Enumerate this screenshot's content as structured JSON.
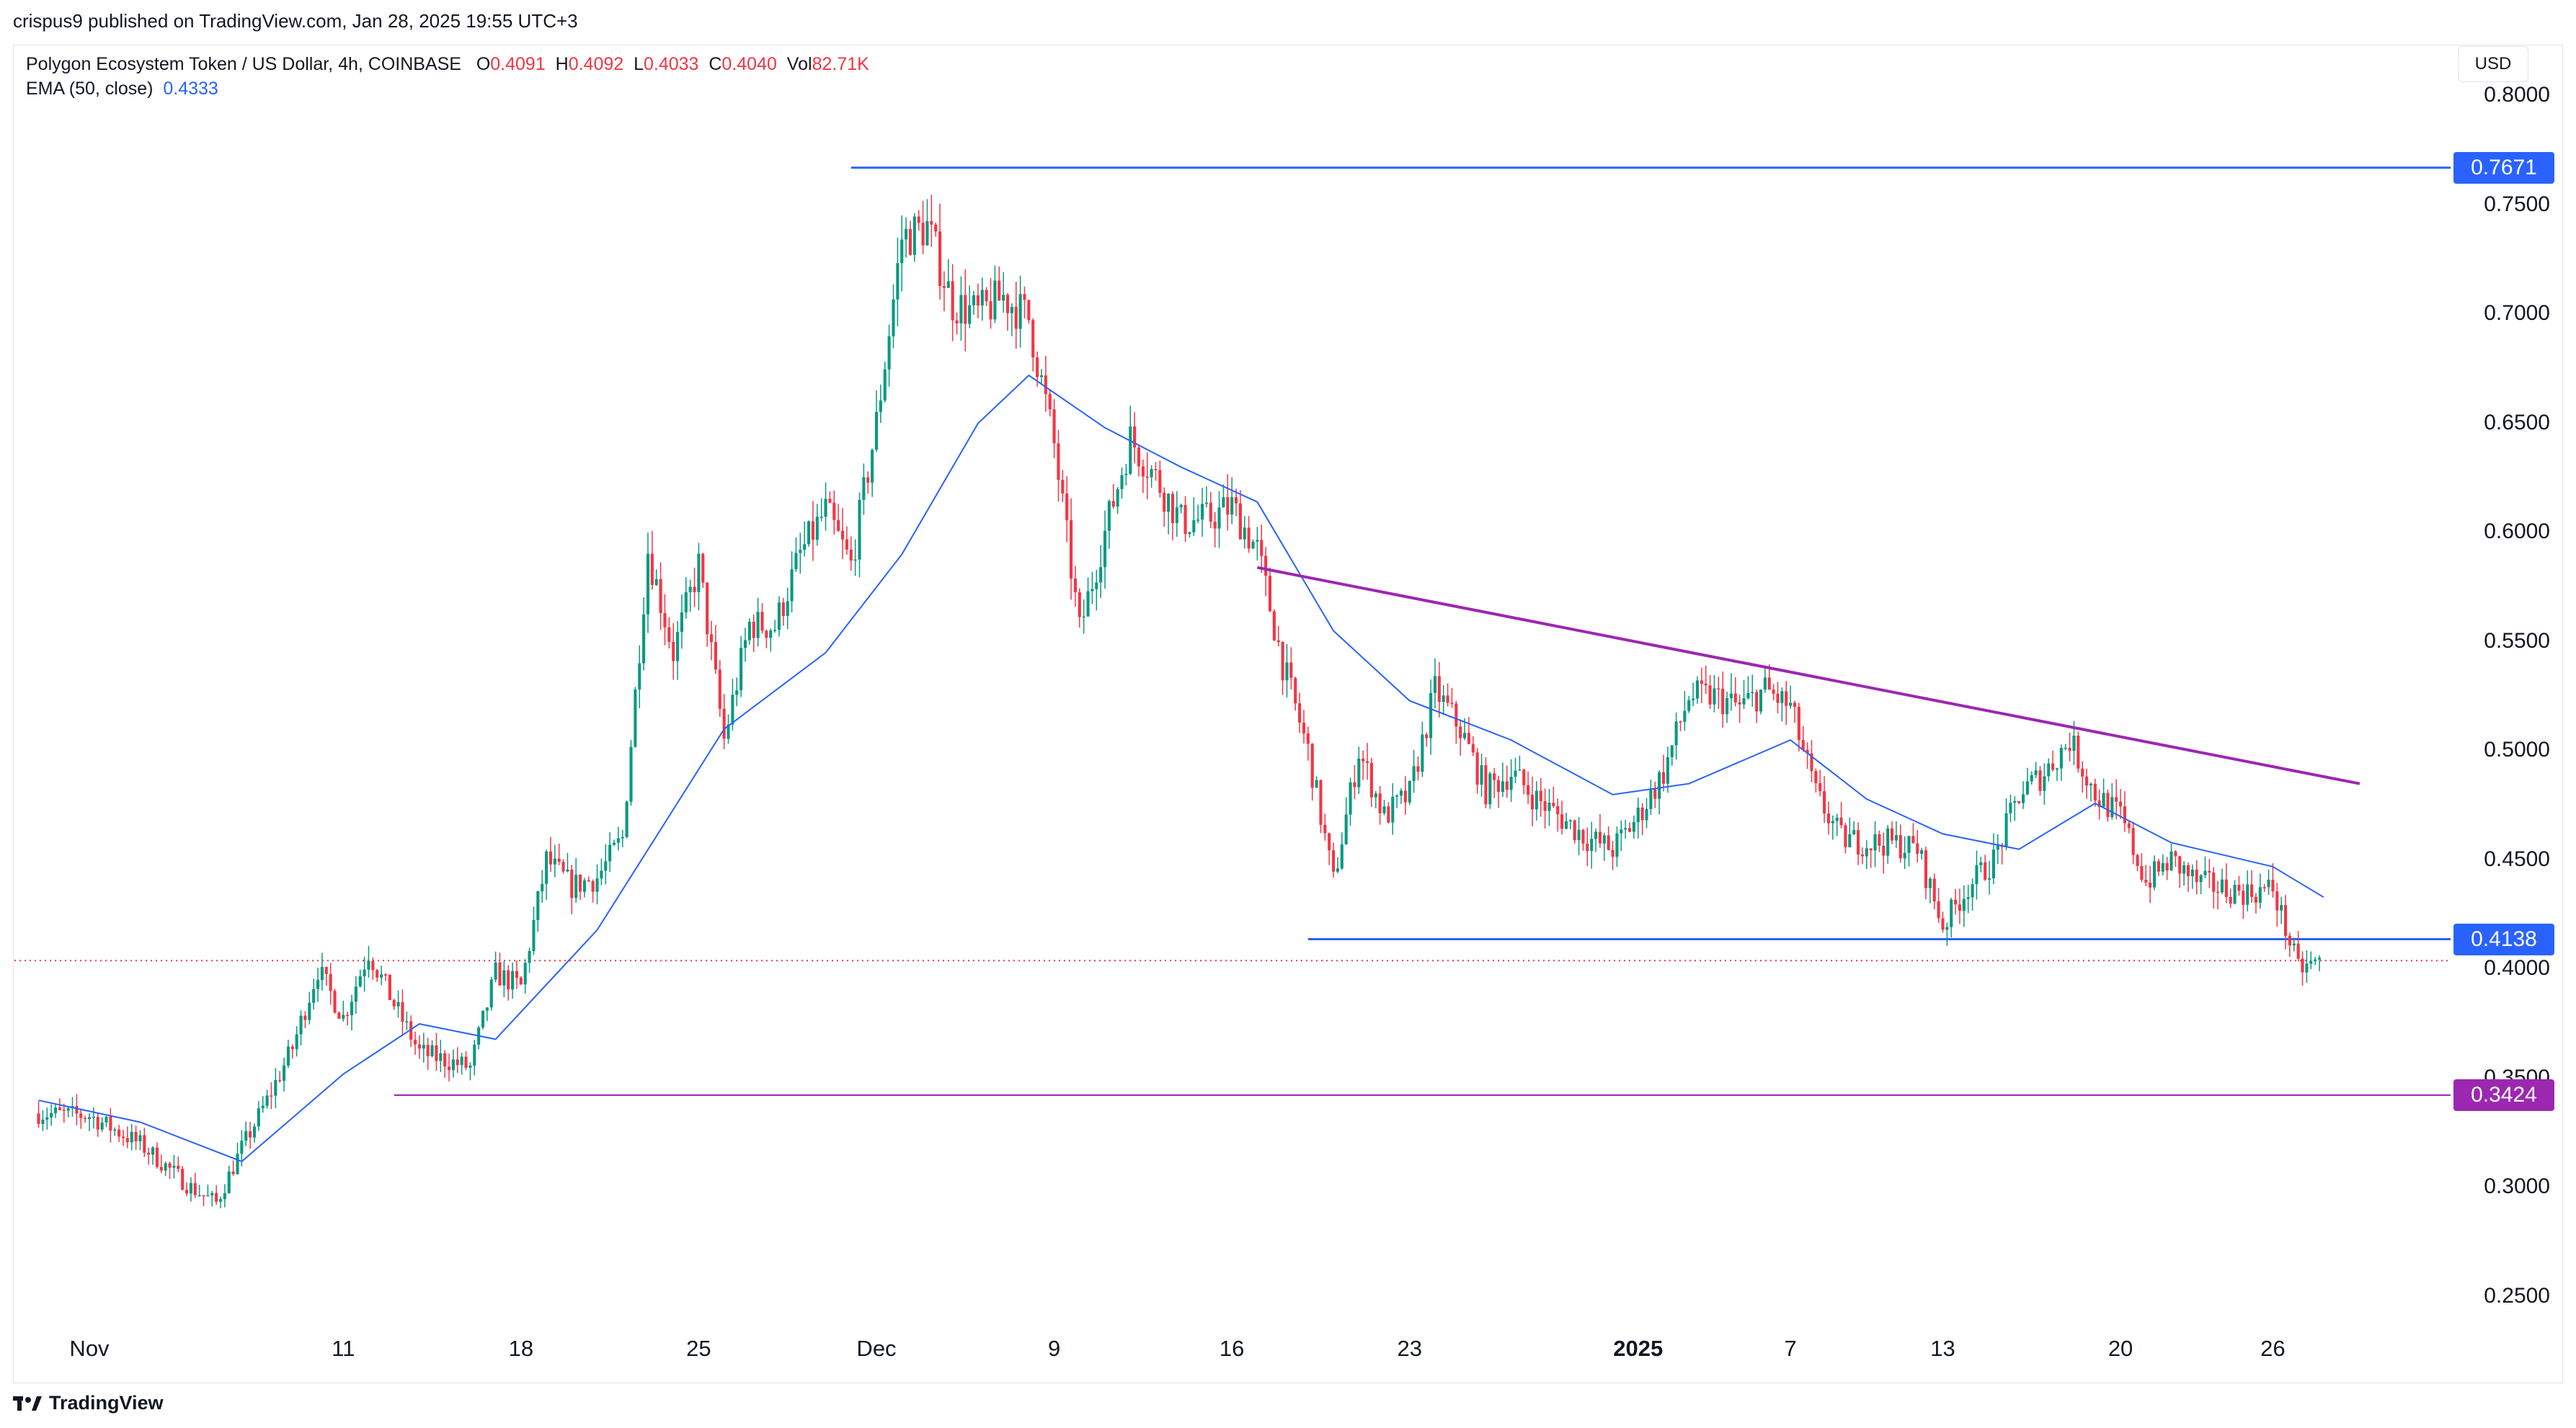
{
  "header": {
    "published": "crispus9 published on TradingView.com, Jan 28, 2025 19:55 UTC+3"
  },
  "legend": {
    "symbol": "Polygon Ecosystem Token / US Dollar, 4h, COINBASE",
    "o_label": "O",
    "o": "0.4091",
    "h_label": "H",
    "h": "0.4092",
    "l_label": "L",
    "l": "0.4033",
    "c_label": "C",
    "c": "0.4040",
    "vol_label": "Vol",
    "vol": "82.71K",
    "ema_label": "EMA (50, close)",
    "ema_value": "0.4333"
  },
  "currency": "USD",
  "branding": "TradingView",
  "colors": {
    "up": "#089981",
    "down": "#f23645",
    "ema": "#2962ff",
    "level": "#2962ff",
    "trend": "#9c27b0",
    "last_price": "#f23645"
  },
  "chart_data": {
    "type": "candlestick",
    "interval": "4h",
    "y_ticks": [
      "0.8000",
      "0.7500",
      "0.7000",
      "0.6500",
      "0.6000",
      "0.5500",
      "0.5000",
      "0.4500",
      "0.4000",
      "0.3500",
      "0.3000",
      "0.2500"
    ],
    "x_ticks": [
      "Nov",
      "11",
      "18",
      "25",
      "Dec",
      "9",
      "16",
      "23",
      "2025",
      "7",
      "13",
      "20",
      "26"
    ],
    "levels": [
      {
        "value": 0.7671,
        "label": "0.7671",
        "color": "#2962ff"
      },
      {
        "value": 0.4138,
        "label": "0.4138",
        "color": "#2962ff"
      },
      {
        "value": 0.3424,
        "label": "0.3424",
        "color": "#9c27b0"
      }
    ],
    "trendline": {
      "from": {
        "date": "2024-12-17",
        "value": 0.584
      },
      "to": {
        "date": "2025-01-28",
        "value": 0.486
      },
      "color": "#9c27b0"
    },
    "last_price": 0.404,
    "price_path": [
      [
        "2024-10-30",
        0.334
      ],
      [
        "2024-11-01",
        0.333
      ],
      [
        "2024-11-03",
        0.32
      ],
      [
        "2024-11-05",
        0.3
      ],
      [
        "2024-11-06",
        0.293
      ],
      [
        "2024-11-07",
        0.318
      ],
      [
        "2024-11-08",
        0.34
      ],
      [
        "2024-11-09",
        0.364
      ],
      [
        "2024-11-10",
        0.4
      ],
      [
        "2024-11-11",
        0.378
      ],
      [
        "2024-11-12",
        0.408
      ],
      [
        "2024-11-13",
        0.384
      ],
      [
        "2024-11-14",
        0.362
      ],
      [
        "2024-11-16",
        0.355
      ],
      [
        "2024-11-17",
        0.398
      ],
      [
        "2024-11-18",
        0.392
      ],
      [
        "2024-11-19",
        0.45
      ],
      [
        "2024-11-20",
        0.438
      ],
      [
        "2024-11-21",
        0.442
      ],
      [
        "2024-11-22",
        0.46
      ],
      [
        "2024-11-23",
        0.592
      ],
      [
        "2024-11-24",
        0.545
      ],
      [
        "2024-11-25",
        0.585
      ],
      [
        "2024-11-26",
        0.505
      ],
      [
        "2024-11-27",
        0.558
      ],
      [
        "2024-11-28",
        0.557
      ],
      [
        "2024-11-29",
        0.59
      ],
      [
        "2024-11-30",
        0.61
      ],
      [
        "2024-12-01",
        0.585
      ],
      [
        "2024-12-02",
        0.65
      ],
      [
        "2024-12-03",
        0.735
      ],
      [
        "2024-12-04",
        0.74
      ],
      [
        "2024-12-05",
        0.705
      ],
      [
        "2024-12-06",
        0.7
      ],
      [
        "2024-12-07",
        0.708
      ],
      [
        "2024-12-08",
        0.698
      ],
      [
        "2024-12-09",
        0.64
      ],
      [
        "2024-12-10",
        0.555
      ],
      [
        "2024-12-11",
        0.6
      ],
      [
        "2024-12-12",
        0.643
      ],
      [
        "2024-12-13",
        0.625
      ],
      [
        "2024-12-14",
        0.605
      ],
      [
        "2024-12-15",
        0.606
      ],
      [
        "2024-12-16",
        0.612
      ],
      [
        "2024-12-17",
        0.592
      ],
      [
        "2024-12-18",
        0.54
      ],
      [
        "2024-12-19",
        0.5
      ],
      [
        "2024-12-20",
        0.44
      ],
      [
        "2024-12-21",
        0.5
      ],
      [
        "2024-12-22",
        0.47
      ],
      [
        "2024-12-23",
        0.48
      ],
      [
        "2024-12-24",
        0.528
      ],
      [
        "2024-12-25",
        0.51
      ],
      [
        "2024-12-26",
        0.482
      ],
      [
        "2024-12-27",
        0.49
      ],
      [
        "2024-12-28",
        0.478
      ],
      [
        "2024-12-30",
        0.46
      ],
      [
        "2024-12-31",
        0.455
      ],
      [
        "2025-01-01",
        0.47
      ],
      [
        "2025-01-02",
        0.49
      ],
      [
        "2025-01-03",
        0.525
      ],
      [
        "2025-01-04",
        0.525
      ],
      [
        "2025-01-05",
        0.52
      ],
      [
        "2025-01-06",
        0.528
      ],
      [
        "2025-01-07",
        0.52
      ],
      [
        "2025-01-08",
        0.48
      ],
      [
        "2025-01-09",
        0.46
      ],
      [
        "2025-01-10",
        0.458
      ],
      [
        "2025-01-11",
        0.458
      ],
      [
        "2025-01-12",
        0.455
      ],
      [
        "2025-01-13",
        0.42
      ],
      [
        "2025-01-14",
        0.438
      ],
      [
        "2025-01-15",
        0.45
      ],
      [
        "2025-01-16",
        0.48
      ],
      [
        "2025-01-17",
        0.49
      ],
      [
        "2025-01-18",
        0.505
      ],
      [
        "2025-01-19",
        0.48
      ],
      [
        "2025-01-20",
        0.47
      ],
      [
        "2025-01-21",
        0.44
      ],
      [
        "2025-01-22",
        0.45
      ],
      [
        "2025-01-23",
        0.44
      ],
      [
        "2025-01-24",
        0.437
      ],
      [
        "2025-01-25",
        0.435
      ],
      [
        "2025-01-26",
        0.437
      ],
      [
        "2025-01-27",
        0.4
      ],
      [
        "2025-01-28",
        0.404
      ]
    ],
    "ema_path": [
      [
        "2024-10-30",
        0.34
      ],
      [
        "2024-11-03",
        0.33
      ],
      [
        "2024-11-07",
        0.312
      ],
      [
        "2024-11-11",
        0.352
      ],
      [
        "2024-11-14",
        0.375
      ],
      [
        "2024-11-17",
        0.368
      ],
      [
        "2024-11-21",
        0.418
      ],
      [
        "2024-11-26",
        0.51
      ],
      [
        "2024-11-30",
        0.545
      ],
      [
        "2024-12-03",
        0.59
      ],
      [
        "2024-12-06",
        0.65
      ],
      [
        "2024-12-08",
        0.672
      ],
      [
        "2024-12-11",
        0.648
      ],
      [
        "2024-12-14",
        0.63
      ],
      [
        "2024-12-17",
        0.614
      ],
      [
        "2024-12-20",
        0.555
      ],
      [
        "2024-12-23",
        0.523
      ],
      [
        "2024-12-27",
        0.505
      ],
      [
        "2024-12-31",
        0.48
      ],
      [
        "2025-01-03",
        0.485
      ],
      [
        "2025-01-07",
        0.505
      ],
      [
        "2025-01-10",
        0.478
      ],
      [
        "2025-01-13",
        0.462
      ],
      [
        "2025-01-16",
        0.455
      ],
      [
        "2025-01-19",
        0.476
      ],
      [
        "2025-01-22",
        0.458
      ],
      [
        "2025-01-26",
        0.447
      ],
      [
        "2025-01-28",
        0.433
      ]
    ]
  }
}
